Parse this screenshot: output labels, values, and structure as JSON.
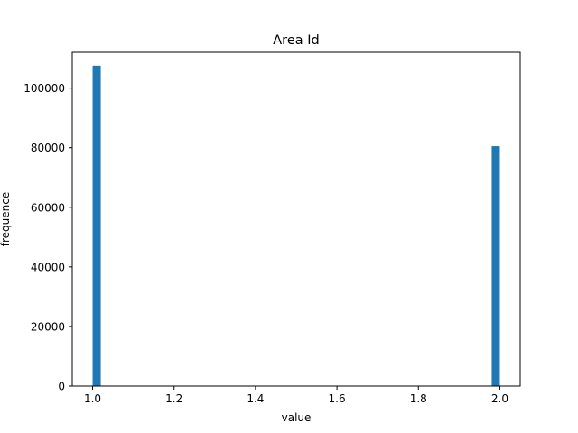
{
  "chart_data": {
    "type": "bar",
    "title": "Area Id",
    "xlabel": "value",
    "ylabel": "frequence",
    "xlim": [
      0.95,
      2.05
    ],
    "ylim": [
      0,
      112000
    ],
    "xticks": [
      1.0,
      1.2,
      1.4,
      1.6,
      1.8,
      2.0
    ],
    "xtick_labels": [
      "1.0",
      "1.2",
      "1.4",
      "1.6",
      "1.8",
      "2.0"
    ],
    "yticks": [
      0,
      20000,
      40000,
      60000,
      80000,
      100000
    ],
    "ytick_labels": [
      "0",
      "20000",
      "40000",
      "60000",
      "80000",
      "100000"
    ],
    "bins": [
      {
        "x0": 1.0,
        "x1": 1.02,
        "value": 107500
      },
      {
        "x0": 1.98,
        "x1": 2.0,
        "value": 80500
      }
    ],
    "bar_color": "#1f77b4",
    "grid": false,
    "legend": false
  }
}
